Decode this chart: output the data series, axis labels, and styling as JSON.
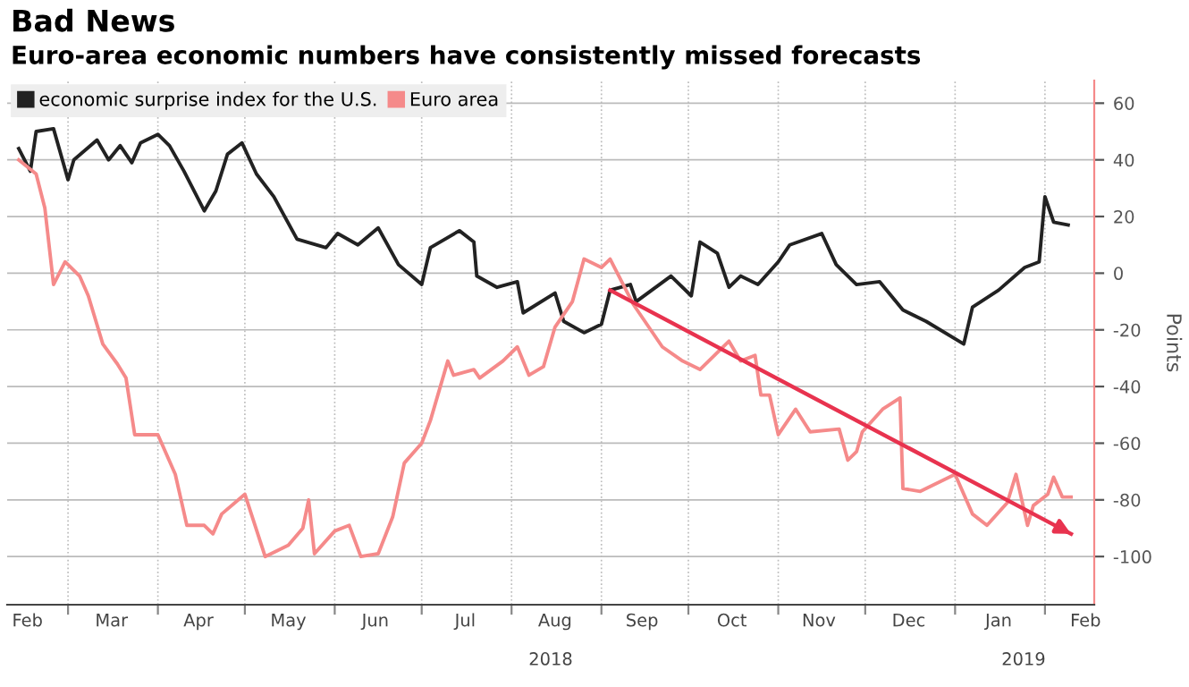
{
  "chart_data": {
    "type": "line",
    "title": "Bad News",
    "subtitle": "Euro-area economic numbers have consistently missed forecasts",
    "ylabel": "Points",
    "xlim": [
      "2018-02-08",
      "2019-02-18"
    ],
    "ylim": [
      -117,
      68
    ],
    "yticks": [
      -100,
      -80,
      -60,
      -40,
      -20,
      0,
      20,
      40,
      60
    ],
    "xticks": [
      {
        "value": "2018-02-15",
        "label": "Feb"
      },
      {
        "value": "2018-03-01",
        "label": null
      },
      {
        "value": "2018-03-16",
        "label": "Mar"
      },
      {
        "value": "2018-04-01",
        "label": null
      },
      {
        "value": "2018-04-15",
        "label": "Apr"
      },
      {
        "value": "2018-05-01",
        "label": null
      },
      {
        "value": "2018-05-16",
        "label": "May"
      },
      {
        "value": "2018-06-01",
        "label": null
      },
      {
        "value": "2018-06-15",
        "label": "Jun"
      },
      {
        "value": "2018-07-01",
        "label": null
      },
      {
        "value": "2018-07-16",
        "label": "Jul"
      },
      {
        "value": "2018-08-01",
        "label": null
      },
      {
        "value": "2018-08-16",
        "label": "Aug"
      },
      {
        "value": "2018-09-01",
        "label": null
      },
      {
        "value": "2018-09-15",
        "label": "Sep"
      },
      {
        "value": "2018-10-01",
        "label": null
      },
      {
        "value": "2018-10-16",
        "label": "Oct"
      },
      {
        "value": "2018-11-01",
        "label": null
      },
      {
        "value": "2018-11-15",
        "label": "Nov"
      },
      {
        "value": "2018-12-01",
        "label": null
      },
      {
        "value": "2018-12-16",
        "label": "Dec"
      },
      {
        "value": "2019-01-01",
        "label": null
      },
      {
        "value": "2019-01-16",
        "label": "Jan"
      },
      {
        "value": "2019-02-01",
        "label": null
      },
      {
        "value": "2019-02-15",
        "label": "Feb"
      }
    ],
    "grid": true,
    "legend": "top left",
    "annotations": [
      "2018",
      "2019"
    ],
    "series": [
      {
        "name": "economic surprise index for the U.S.",
        "color": "#222222",
        "x": [
          "2018-02-12",
          "2018-02-16",
          "2018-02-18",
          "2018-02-24",
          "2018-03-01",
          "2018-03-03",
          "2018-03-11",
          "2018-03-15",
          "2018-03-19",
          "2018-03-23",
          "2018-03-26",
          "2018-04-01",
          "2018-04-05",
          "2018-04-10",
          "2018-04-17",
          "2018-04-21",
          "2018-04-25",
          "2018-04-30",
          "2018-05-05",
          "2018-05-11",
          "2018-05-19",
          "2018-05-29",
          "2018-06-02",
          "2018-06-09",
          "2018-06-16",
          "2018-06-23",
          "2018-07-01",
          "2018-07-04",
          "2018-07-14",
          "2018-07-19",
          "2018-07-20",
          "2018-07-27",
          "2018-08-03",
          "2018-08-05",
          "2018-08-16",
          "2018-08-19",
          "2018-08-26",
          "2018-09-01",
          "2018-09-04",
          "2018-09-11",
          "2018-09-13",
          "2018-09-25",
          "2018-10-02",
          "2018-10-05",
          "2018-10-11",
          "2018-10-15",
          "2018-10-19",
          "2018-10-25",
          "2018-11-01",
          "2018-11-05",
          "2018-11-16",
          "2018-11-21",
          "2018-11-28",
          "2018-12-06",
          "2018-12-14",
          "2018-12-22",
          "2019-01-04",
          "2019-01-07",
          "2019-01-16",
          "2019-01-25",
          "2019-01-30",
          "2019-02-01",
          "2019-02-04",
          "2019-02-09"
        ],
        "values": [
          44,
          36,
          50,
          51,
          33,
          40,
          47,
          40,
          45,
          39,
          46,
          49,
          45,
          36,
          22,
          29,
          42,
          46,
          35,
          27,
          12,
          9,
          14,
          10,
          16,
          3,
          -4,
          9,
          15,
          11,
          -1,
          -5,
          -3,
          -14,
          -7,
          -17,
          -21,
          -18,
          -6,
          -4,
          -10,
          -1,
          -8,
          11,
          7,
          -5,
          -1,
          -4,
          4,
          10,
          14,
          3,
          -4,
          -3,
          -13,
          -17,
          -25,
          -12,
          -6,
          2,
          4,
          27,
          18,
          17
        ]
      },
      {
        "name": "Euro area",
        "color": "#f58a8a",
        "x": [
          "2018-02-12",
          "2018-02-18",
          "2018-02-21",
          "2018-02-24",
          "2018-02-28",
          "2018-03-05",
          "2018-03-08",
          "2018-03-13",
          "2018-03-18",
          "2018-03-21",
          "2018-03-24",
          "2018-04-01",
          "2018-04-07",
          "2018-04-11",
          "2018-04-17",
          "2018-04-20",
          "2018-04-23",
          "2018-05-01",
          "2018-05-08",
          "2018-05-16",
          "2018-05-21",
          "2018-05-23",
          "2018-05-25",
          "2018-06-01",
          "2018-06-06",
          "2018-06-10",
          "2018-06-16",
          "2018-06-21",
          "2018-06-25",
          "2018-07-01",
          "2018-07-04",
          "2018-07-10",
          "2018-07-12",
          "2018-07-19",
          "2018-07-21",
          "2018-07-29",
          "2018-08-03",
          "2018-08-07",
          "2018-08-12",
          "2018-08-16",
          "2018-08-22",
          "2018-08-26",
          "2018-09-01",
          "2018-09-04",
          "2018-09-12",
          "2018-09-22",
          "2018-09-29",
          "2018-10-05",
          "2018-10-15",
          "2018-10-19",
          "2018-10-24",
          "2018-10-26",
          "2018-10-29",
          "2018-11-01",
          "2018-11-07",
          "2018-11-12",
          "2018-11-22",
          "2018-11-25",
          "2018-11-28",
          "2018-11-30",
          "2018-12-07",
          "2018-12-13",
          "2018-12-14",
          "2018-12-20",
          "2019-01-01",
          "2019-01-07",
          "2019-01-12",
          "2019-01-19",
          "2019-01-22",
          "2019-01-26",
          "2019-01-28",
          "2019-02-02",
          "2019-02-04",
          "2019-02-07",
          "2019-02-10"
        ],
        "values": [
          40,
          35,
          23,
          -4,
          4,
          -1,
          -8,
          -25,
          -32,
          -37,
          -57,
          -57,
          -71,
          -89,
          -89,
          -92,
          -85,
          -78,
          -100,
          -96,
          -90,
          -80,
          -99,
          -91,
          -89,
          -100,
          -99,
          -86,
          -67,
          -60,
          -52,
          -31,
          -36,
          -34,
          -37,
          -31,
          -26,
          -36,
          -33,
          -19,
          -10,
          5,
          2,
          5,
          -11,
          -26,
          -31,
          -34,
          -24,
          -31,
          -29,
          -43,
          -43,
          -57,
          -48,
          -56,
          -55,
          -66,
          -63,
          -56,
          -48,
          -44,
          -76,
          -77,
          -71,
          -85,
          -89,
          -81,
          -71,
          -89,
          -82,
          -78,
          -72,
          -79,
          -79
        ]
      },
      {
        "color": "#e8334f",
        "x": [
          "2018-09-04",
          "2019-02-10"
        ],
        "values": [
          -6,
          -92
        ]
      }
    ]
  }
}
